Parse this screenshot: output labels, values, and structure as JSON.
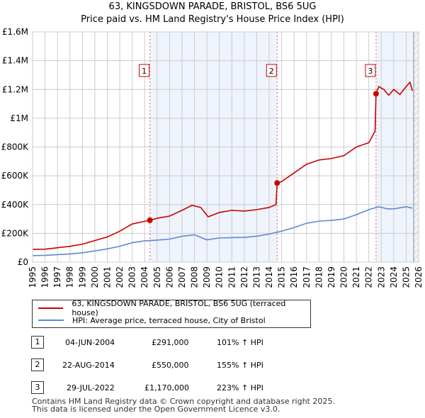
{
  "title": "63, KINGSDOWN PARADE, BRISTOL, BS6 5UG",
  "subtitle": "Price paid vs. HM Land Registry's House Price Index (HPI)",
  "chart_data": {
    "type": "line",
    "xlim": [
      1995,
      2026
    ],
    "ylim": [
      0,
      1600000
    ],
    "x_ticks": [
      "1995",
      "1996",
      "1997",
      "1998",
      "1999",
      "2000",
      "2001",
      "2002",
      "2003",
      "2004",
      "2005",
      "2006",
      "2007",
      "2008",
      "2009",
      "2010",
      "2011",
      "2012",
      "2013",
      "2014",
      "2015",
      "2016",
      "2017",
      "2018",
      "2019",
      "2020",
      "2021",
      "2022",
      "2023",
      "2024",
      "2025",
      "2026"
    ],
    "y_ticks": [
      {
        "v": 0,
        "label": "£0"
      },
      {
        "v": 200000,
        "label": "£200K"
      },
      {
        "v": 400000,
        "label": "£400K"
      },
      {
        "v": 600000,
        "label": "£600K"
      },
      {
        "v": 800000,
        "label": "£800K"
      },
      {
        "v": 1000000,
        "label": "£1M"
      },
      {
        "v": 1200000,
        "label": "£1.2M"
      },
      {
        "v": 1400000,
        "label": "£1.4M"
      },
      {
        "v": 1600000,
        "label": "£1.6M"
      }
    ],
    "series": [
      {
        "name": "63, KINGSDOWN PARADE, BRISTOL, BS6 5UG (terraced house)",
        "color": "#cc0000",
        "x": [
          1995,
          1996,
          1997,
          1998,
          1999,
          2000,
          2001,
          2002,
          2003,
          2003.8,
          2004.42,
          2005,
          2006,
          2007,
          2007.8,
          2008.5,
          2009.1,
          2010,
          2011,
          2012,
          2013,
          2014,
          2014.55,
          2014.64,
          2015,
          2016,
          2017,
          2018,
          2019,
          2020,
          2021,
          2022,
          2022.5,
          2022.58,
          2022.8,
          2023.2,
          2023.6,
          2024,
          2024.5,
          2025,
          2025.3,
          2025.5
        ],
        "y": [
          89000,
          90000,
          100000,
          110000,
          125000,
          150000,
          175000,
          215000,
          265000,
          280000,
          291000,
          305000,
          320000,
          360000,
          395000,
          380000,
          315000,
          345000,
          360000,
          355000,
          365000,
          380000,
          400000,
          550000,
          560000,
          620000,
          680000,
          710000,
          720000,
          740000,
          800000,
          830000,
          910000,
          1170000,
          1220000,
          1200000,
          1160000,
          1200000,
          1165000,
          1220000,
          1250000,
          1190000
        ]
      },
      {
        "name": "HPI: Average price, terraced house, City of Bristol",
        "color": "#5b8bd0",
        "x": [
          1995,
          1996,
          1997,
          1998,
          1999,
          2000,
          2001,
          2002,
          2003,
          2004,
          2005,
          2006,
          2007,
          2008,
          2009,
          2010,
          2011,
          2012,
          2013,
          2014,
          2015,
          2016,
          2017,
          2018,
          2019,
          2020,
          2021,
          2022,
          2022.8,
          2023.5,
          2024,
          2025,
          2025.5
        ],
        "y": [
          45000,
          47000,
          52000,
          57000,
          65000,
          78000,
          92000,
          110000,
          135000,
          148000,
          153000,
          160000,
          180000,
          190000,
          155000,
          168000,
          170000,
          172000,
          180000,
          195000,
          215000,
          240000,
          270000,
          285000,
          290000,
          300000,
          330000,
          365000,
          385000,
          370000,
          370000,
          385000,
          375000
        ]
      }
    ],
    "sales": [
      {
        "n": "1",
        "x": 2004.42,
        "y": 291000
      },
      {
        "n": "2",
        "x": 2014.64,
        "y": 550000
      },
      {
        "n": "3",
        "x": 2022.58,
        "y": 1170000
      }
    ],
    "shaded": [
      [
        2004.42,
        2014.64
      ],
      [
        2022.58,
        2026
      ]
    ],
    "hatched_from": 2025.6
  },
  "legend": {
    "property": "63, KINGSDOWN PARADE, BRISTOL, BS6 5UG (terraced house)",
    "hpi": "HPI: Average price, terraced house, City of Bristol"
  },
  "transactions": [
    {
      "n": "1",
      "date": "04-JUN-2004",
      "price": "£291,000",
      "hpi": "101% ↑ HPI"
    },
    {
      "n": "2",
      "date": "22-AUG-2014",
      "price": "£550,000",
      "hpi": "155% ↑ HPI"
    },
    {
      "n": "3",
      "date": "29-JUL-2022",
      "price": "£1,170,000",
      "hpi": "223% ↑ HPI"
    }
  ],
  "footer": [
    "Contains HM Land Registry data © Crown copyright and database right 2025.",
    "This data is licensed under the Open Government Licence v3.0."
  ]
}
